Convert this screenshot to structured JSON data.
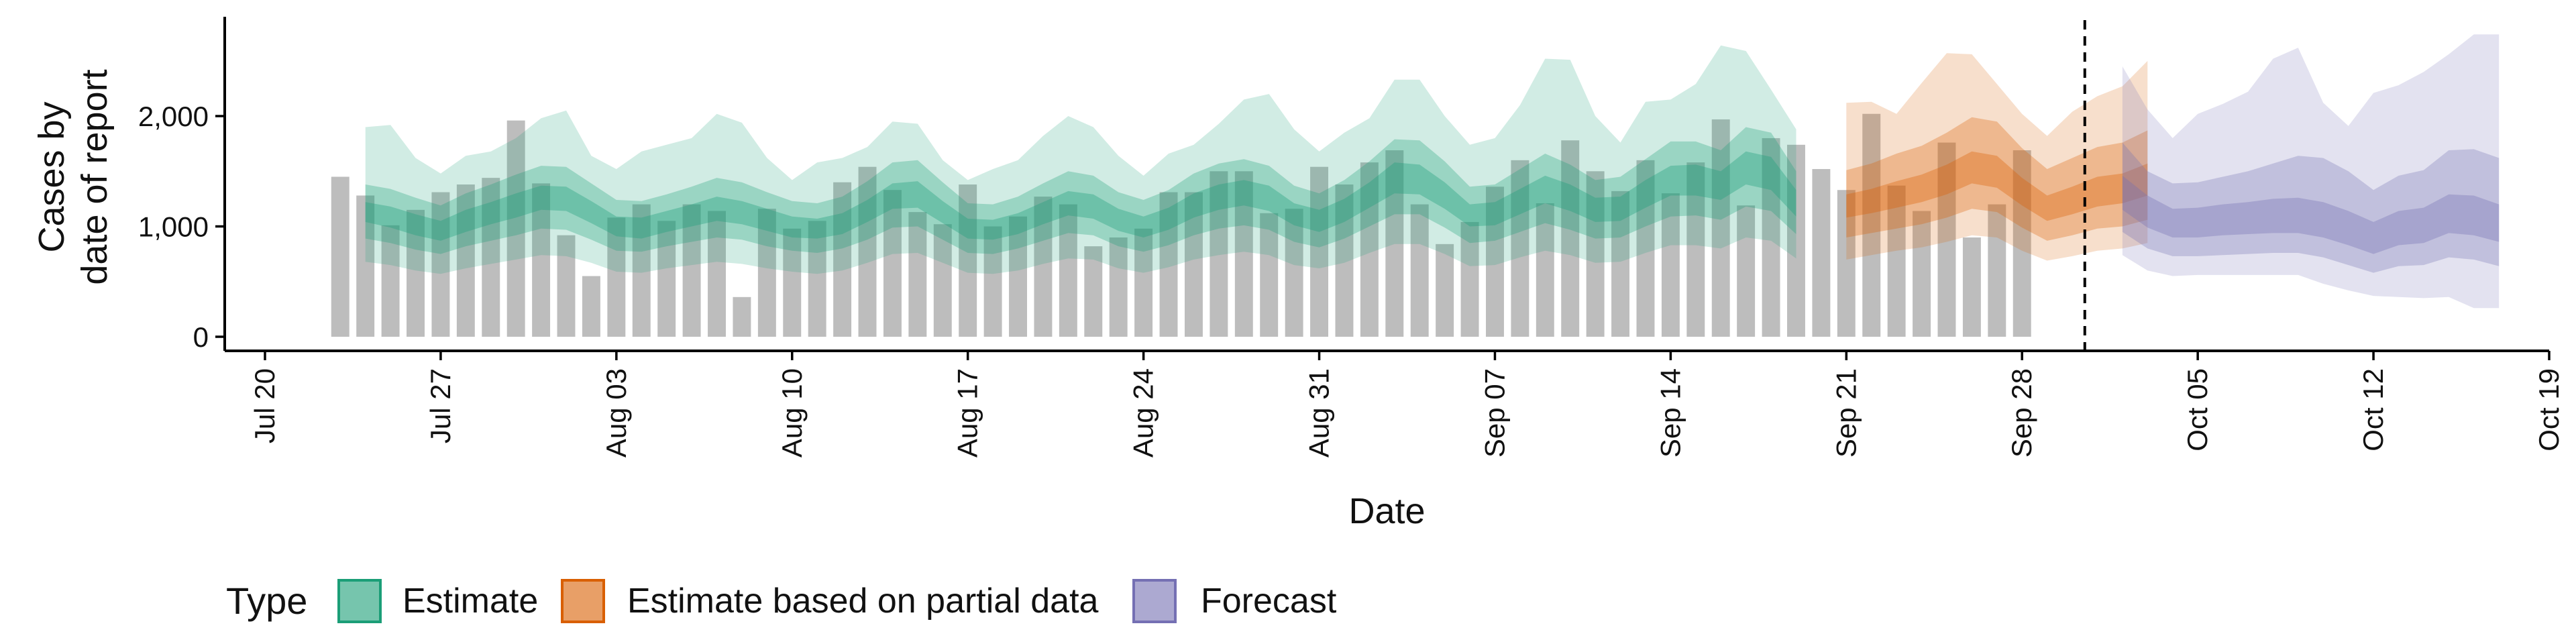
{
  "chart_data": {
    "type": "bar",
    "xlabel": "Date",
    "ylabel": [
      "Cases by",
      "date of report"
    ],
    "ylim": [
      0,
      2900
    ],
    "yticks": [
      0,
      1000,
      2000
    ],
    "ytick_labels": [
      "0",
      "1,000",
      "2,000"
    ],
    "x_start": "2020-07-20",
    "x_end": "2020-10-19",
    "xticks": [
      "2020-07-20",
      "2020-07-27",
      "2020-08-03",
      "2020-08-10",
      "2020-08-17",
      "2020-08-24",
      "2020-08-31",
      "2020-09-07",
      "2020-09-14",
      "2020-09-21",
      "2020-09-28",
      "2020-10-05",
      "2020-10-12",
      "2020-10-19"
    ],
    "xtick_labels": [
      "Jul 20",
      "Jul 27",
      "Aug 03",
      "Aug 10",
      "Aug 17",
      "Aug 24",
      "Aug 31",
      "Sep 07",
      "Sep 14",
      "Sep 21",
      "Sep 28",
      "Oct 05",
      "Oct 12",
      "Oct 19"
    ],
    "cutoff_date": "2020-10-01",
    "bars": {
      "first_date": "2020-07-23",
      "values": [
        1450,
        1280,
        1010,
        1150,
        1310,
        1380,
        1440,
        1960,
        1390,
        920,
        550,
        1080,
        1200,
        1050,
        1200,
        1140,
        360,
        1160,
        980,
        1050,
        1400,
        1540,
        1330,
        1130,
        1020,
        1380,
        1000,
        1090,
        1270,
        1200,
        820,
        900,
        980,
        1310,
        1310,
        1500,
        1500,
        1120,
        1160,
        1540,
        1380,
        1580,
        1690,
        1200,
        840,
        1040,
        1360,
        1600,
        1210,
        1780,
        1500,
        1320,
        1600,
        1300,
        1580,
        1970,
        1190,
        1800,
        1740,
        1520,
        1330,
        2020,
        1370,
        1140,
        1760,
        900,
        1200,
        1690
      ]
    },
    "series": [
      {
        "name": "Estimate",
        "color": "#1B9E77",
        "first_date": "2020-07-24",
        "median": [
          1130,
          1090,
          1020,
          960,
          1050,
          1120,
          1190,
          1260,
          1250,
          1130,
          1000,
          990,
          1050,
          1100,
          1160,
          1130,
          1060,
          1000,
          980,
          1030,
          1140,
          1280,
          1290,
          1130,
          980,
          970,
          1030,
          1120,
          1210,
          1180,
          1060,
          1000,
          1070,
          1190,
          1270,
          1310,
          1260,
          1110,
          1050,
          1150,
          1290,
          1440,
          1430,
          1280,
          1100,
          1120,
          1230,
          1340,
          1260,
          1150,
          1170,
          1300,
          1420,
          1420,
          1370,
          1530,
          1480,
          1210
        ],
        "inner_low": [
          1040,
          990,
          920,
          870,
          950,
          1020,
          1080,
          1150,
          1140,
          1030,
          910,
          890,
          950,
          1000,
          1050,
          1020,
          960,
          900,
          890,
          930,
          1040,
          1160,
          1170,
          1030,
          890,
          880,
          930,
          1020,
          1100,
          1070,
          960,
          900,
          970,
          1080,
          1150,
          1190,
          1140,
          1010,
          950,
          1040,
          1170,
          1300,
          1290,
          1160,
          1000,
          1010,
          1110,
          1210,
          1140,
          1040,
          1050,
          1170,
          1280,
          1280,
          1240,
          1380,
          1330,
          1090
        ],
        "inner_high": [
          1220,
          1180,
          1110,
          1050,
          1150,
          1220,
          1300,
          1370,
          1360,
          1230,
          1090,
          1080,
          1140,
          1200,
          1270,
          1230,
          1160,
          1090,
          1070,
          1120,
          1240,
          1390,
          1410,
          1230,
          1070,
          1060,
          1120,
          1220,
          1320,
          1290,
          1160,
          1090,
          1170,
          1300,
          1380,
          1420,
          1370,
          1210,
          1150,
          1250,
          1400,
          1580,
          1560,
          1400,
          1200,
          1220,
          1340,
          1460,
          1380,
          1260,
          1270,
          1420,
          1550,
          1560,
          1500,
          1680,
          1630,
          1330
        ],
        "mid_low": [
          890,
          850,
          790,
          750,
          820,
          870,
          920,
          980,
          970,
          880,
          780,
          770,
          820,
          860,
          900,
          880,
          820,
          780,
          760,
          800,
          880,
          990,
          1000,
          880,
          760,
          750,
          800,
          870,
          940,
          920,
          820,
          770,
          830,
          920,
          980,
          1010,
          970,
          860,
          810,
          890,
          1000,
          1110,
          1110,
          990,
          850,
          870,
          950,
          1030,
          970,
          890,
          900,
          1000,
          1090,
          1100,
          1060,
          1180,
          1140,
          930
        ],
        "mid_high": [
          1380,
          1340,
          1260,
          1190,
          1300,
          1380,
          1470,
          1550,
          1540,
          1390,
          1240,
          1230,
          1290,
          1360,
          1440,
          1400,
          1310,
          1230,
          1210,
          1270,
          1410,
          1580,
          1600,
          1400,
          1210,
          1200,
          1270,
          1390,
          1500,
          1460,
          1310,
          1240,
          1330,
          1480,
          1570,
          1610,
          1550,
          1370,
          1300,
          1420,
          1590,
          1790,
          1780,
          1590,
          1360,
          1380,
          1520,
          1660,
          1560,
          1420,
          1450,
          1610,
          1770,
          1770,
          1690,
          1900,
          1850,
          1500
        ],
        "outer_low": [
          680,
          650,
          600,
          570,
          620,
          660,
          700,
          740,
          730,
          670,
          590,
          580,
          620,
          650,
          680,
          660,
          620,
          590,
          570,
          600,
          670,
          750,
          760,
          670,
          580,
          570,
          600,
          660,
          710,
          700,
          620,
          580,
          630,
          700,
          740,
          770,
          740,
          650,
          620,
          670,
          760,
          840,
          840,
          750,
          640,
          650,
          720,
          780,
          740,
          670,
          680,
          760,
          830,
          830,
          800,
          900,
          870,
          710
        ],
        "outer_high": [
          1900,
          1920,
          1620,
          1480,
          1640,
          1680,
          1800,
          1980,
          2050,
          1640,
          1520,
          1680,
          1740,
          1800,
          2020,
          1940,
          1620,
          1420,
          1580,
          1620,
          1720,
          1950,
          1930,
          1600,
          1420,
          1520,
          1600,
          1820,
          2000,
          1900,
          1640,
          1460,
          1660,
          1740,
          1930,
          2150,
          2200,
          1880,
          1680,
          1850,
          1980,
          2330,
          2330,
          2000,
          1740,
          1800,
          2100,
          2520,
          2510,
          2000,
          1760,
          2130,
          2150,
          2290,
          2640,
          2590,
          2240,
          1880
        ]
      },
      {
        "name": "Estimate based on partial data",
        "color": "#D95F02",
        "first_date": "2020-09-21",
        "median": [
          1180,
          1230,
          1290,
          1340,
          1420,
          1530,
          1490,
          1310,
          1160,
          1230,
          1310,
          1340,
          1420
        ],
        "inner_low": [
          1080,
          1120,
          1170,
          1220,
          1290,
          1390,
          1350,
          1190,
          1050,
          1110,
          1180,
          1210,
          1280
        ],
        "inner_high": [
          1290,
          1340,
          1410,
          1470,
          1560,
          1680,
          1640,
          1440,
          1280,
          1360,
          1450,
          1480,
          1570
        ],
        "mid_low": [
          900,
          940,
          980,
          1020,
          1080,
          1160,
          1130,
          990,
          870,
          920,
          980,
          1000,
          1060
        ],
        "mid_high": [
          1510,
          1570,
          1660,
          1730,
          1850,
          1990,
          1950,
          1710,
          1520,
          1620,
          1720,
          1760,
          1870
        ],
        "outer_low": [
          700,
          740,
          780,
          810,
          860,
          920,
          900,
          780,
          690,
          730,
          780,
          800,
          850
        ],
        "outer_high": [
          2120,
          2130,
          2020,
          2300,
          2570,
          2560,
          2290,
          2020,
          1820,
          2040,
          2180,
          2270,
          2500
        ]
      },
      {
        "name": "Forecast",
        "color": "#7570B3",
        "first_date": "2020-10-02",
        "median": [
          1300,
          1130,
          1020,
          1030,
          1050,
          1060,
          1080,
          1080,
          1040,
          960,
          860,
          960,
          980,
          1090,
          1070,
          1000
        ],
        "inner_low": [
          1150,
          990,
          900,
          900,
          920,
          930,
          940,
          940,
          900,
          830,
          750,
          830,
          850,
          940,
          920,
          860
        ],
        "inner_high": [
          1460,
          1280,
          1160,
          1170,
          1200,
          1220,
          1250,
          1260,
          1220,
          1140,
          1040,
          1140,
          1170,
          1290,
          1280,
          1200
        ],
        "mid_low": [
          950,
          800,
          730,
          730,
          740,
          750,
          760,
          760,
          720,
          650,
          580,
          640,
          650,
          720,
          700,
          640
        ],
        "mid_high": [
          1760,
          1500,
          1390,
          1400,
          1450,
          1500,
          1570,
          1640,
          1620,
          1500,
          1330,
          1460,
          1510,
          1690,
          1700,
          1620
        ],
        "outer_low": [
          740,
          600,
          550,
          560,
          560,
          560,
          560,
          560,
          480,
          420,
          370,
          360,
          350,
          360,
          260,
          260
        ],
        "outer_high": [
          2450,
          2060,
          1800,
          2020,
          2110,
          2220,
          2520,
          2620,
          2120,
          1910,
          2210,
          2280,
          2400,
          2560,
          2740,
          2740
        ]
      }
    ],
    "legend": {
      "position": "bottom-left",
      "title": "Type",
      "entries": [
        {
          "label": "Estimate",
          "color": "#1B9E77"
        },
        {
          "label": "Estimate based on partial data",
          "color": "#D95F02"
        },
        {
          "label": "Forecast",
          "color": "#7570B3"
        }
      ]
    },
    "grid": false
  }
}
